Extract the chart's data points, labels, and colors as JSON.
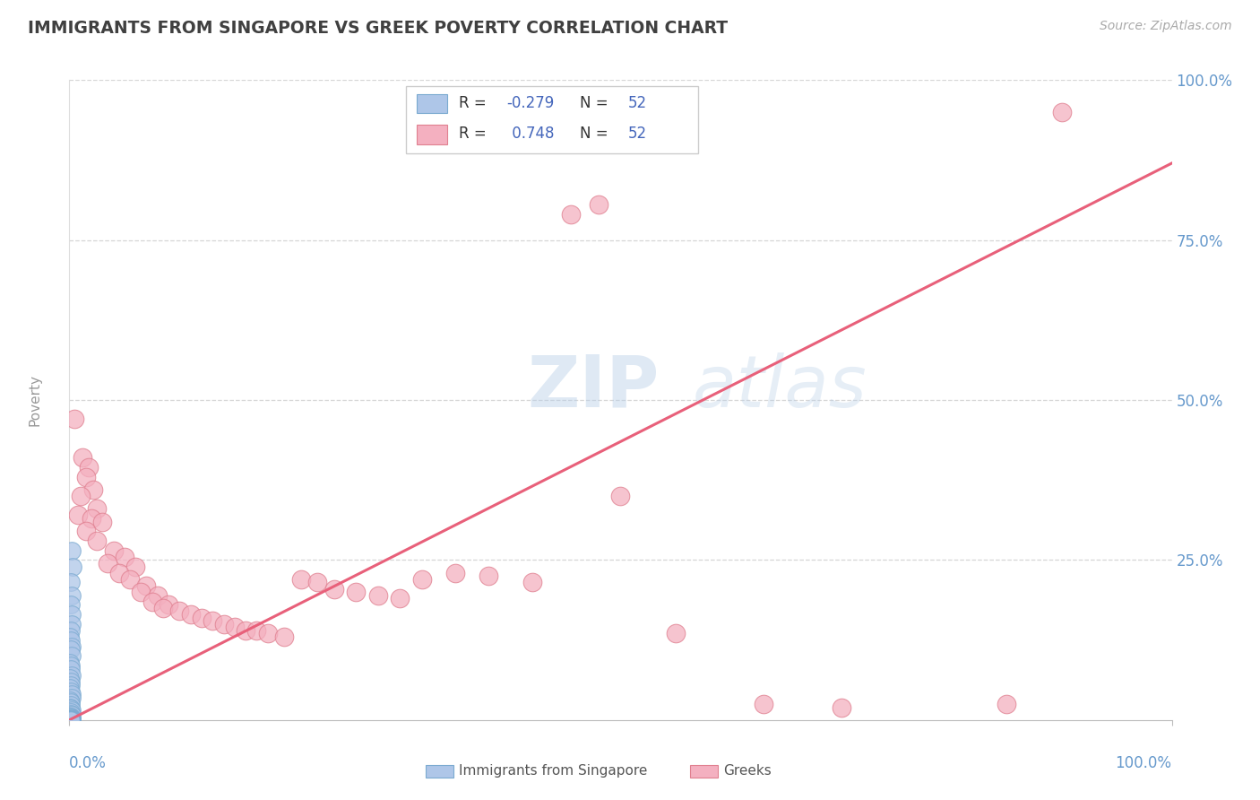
{
  "title": "IMMIGRANTS FROM SINGAPORE VS GREEK POVERTY CORRELATION CHART",
  "source_text": "Source: ZipAtlas.com",
  "ylabel": "Poverty",
  "xlim": [
    0,
    100
  ],
  "ylim": [
    0,
    100
  ],
  "ytick_positions": [
    25,
    50,
    75,
    100
  ],
  "watermark_part1": "ZIP",
  "watermark_part2": "atlas",
  "color_singapore": "#aec6e8",
  "color_singapore_edge": "#7aaad0",
  "color_greeks": "#f4b0c0",
  "color_greeks_edge": "#e08090",
  "color_line_greeks": "#e8607a",
  "color_tick_labels": "#6699cc",
  "color_grid": "#cccccc",
  "color_ylabel": "#999999",
  "color_title": "#404040",
  "color_source": "#aaaaaa",
  "background_color": "#ffffff",
  "singapore_points": [
    [
      0.25,
      26.5
    ],
    [
      0.3,
      24.0
    ],
    [
      0.15,
      21.5
    ],
    [
      0.2,
      19.5
    ],
    [
      0.1,
      18.0
    ],
    [
      0.18,
      16.5
    ],
    [
      0.22,
      15.0
    ],
    [
      0.12,
      14.0
    ],
    [
      0.08,
      13.0
    ],
    [
      0.14,
      12.5
    ],
    [
      0.18,
      11.5
    ],
    [
      0.1,
      11.0
    ],
    [
      0.2,
      10.0
    ],
    [
      0.06,
      9.0
    ],
    [
      0.16,
      8.5
    ],
    [
      0.1,
      8.0
    ],
    [
      0.22,
      7.0
    ],
    [
      0.05,
      6.5
    ],
    [
      0.12,
      6.0
    ],
    [
      0.15,
      5.5
    ],
    [
      0.08,
      5.0
    ],
    [
      0.1,
      4.5
    ],
    [
      0.18,
      4.0
    ],
    [
      0.2,
      3.5
    ],
    [
      0.06,
      3.0
    ],
    [
      0.12,
      2.8
    ],
    [
      0.16,
      2.4
    ],
    [
      0.08,
      2.0
    ],
    [
      0.14,
      1.8
    ],
    [
      0.18,
      1.5
    ],
    [
      0.1,
      1.2
    ],
    [
      0.12,
      1.0
    ],
    [
      0.2,
      0.8
    ],
    [
      0.15,
      0.6
    ],
    [
      0.08,
      0.5
    ],
    [
      0.12,
      0.4
    ],
    [
      0.25,
      0.3
    ],
    [
      0.06,
      0.2
    ],
    [
      0.1,
      0.15
    ],
    [
      0.18,
      0.1
    ],
    [
      0.08,
      0.08
    ],
    [
      0.14,
      0.06
    ],
    [
      0.2,
      0.05
    ],
    [
      0.12,
      0.04
    ],
    [
      0.06,
      0.03
    ],
    [
      0.1,
      0.02
    ],
    [
      0.18,
      0.015
    ],
    [
      0.22,
      0.01
    ],
    [
      0.08,
      0.008
    ],
    [
      0.14,
      0.005
    ],
    [
      0.12,
      0.003
    ],
    [
      0.16,
      0.001
    ]
  ],
  "greeks_points": [
    [
      0.5,
      47.0
    ],
    [
      1.2,
      41.0
    ],
    [
      1.8,
      39.5
    ],
    [
      1.5,
      38.0
    ],
    [
      2.2,
      36.0
    ],
    [
      1.0,
      35.0
    ],
    [
      2.5,
      33.0
    ],
    [
      0.8,
      32.0
    ],
    [
      2.0,
      31.5
    ],
    [
      3.0,
      31.0
    ],
    [
      1.5,
      29.5
    ],
    [
      2.5,
      28.0
    ],
    [
      4.0,
      26.5
    ],
    [
      5.0,
      25.5
    ],
    [
      3.5,
      24.5
    ],
    [
      6.0,
      24.0
    ],
    [
      4.5,
      23.0
    ],
    [
      5.5,
      22.0
    ],
    [
      7.0,
      21.0
    ],
    [
      6.5,
      20.0
    ],
    [
      8.0,
      19.5
    ],
    [
      7.5,
      18.5
    ],
    [
      9.0,
      18.0
    ],
    [
      8.5,
      17.5
    ],
    [
      10.0,
      17.0
    ],
    [
      11.0,
      16.5
    ],
    [
      12.0,
      16.0
    ],
    [
      13.0,
      15.5
    ],
    [
      14.0,
      15.0
    ],
    [
      15.0,
      14.5
    ],
    [
      16.0,
      14.0
    ],
    [
      17.0,
      14.0
    ],
    [
      18.0,
      13.5
    ],
    [
      19.5,
      13.0
    ],
    [
      21.0,
      22.0
    ],
    [
      22.5,
      21.5
    ],
    [
      24.0,
      20.5
    ],
    [
      26.0,
      20.0
    ],
    [
      28.0,
      19.5
    ],
    [
      30.0,
      19.0
    ],
    [
      32.0,
      22.0
    ],
    [
      35.0,
      23.0
    ],
    [
      38.0,
      22.5
    ],
    [
      42.0,
      21.5
    ],
    [
      45.5,
      79.0
    ],
    [
      48.0,
      80.5
    ],
    [
      50.0,
      35.0
    ],
    [
      55.0,
      13.5
    ],
    [
      63.0,
      2.5
    ],
    [
      70.0,
      2.0
    ],
    [
      85.0,
      2.5
    ],
    [
      90.0,
      95.0
    ]
  ]
}
